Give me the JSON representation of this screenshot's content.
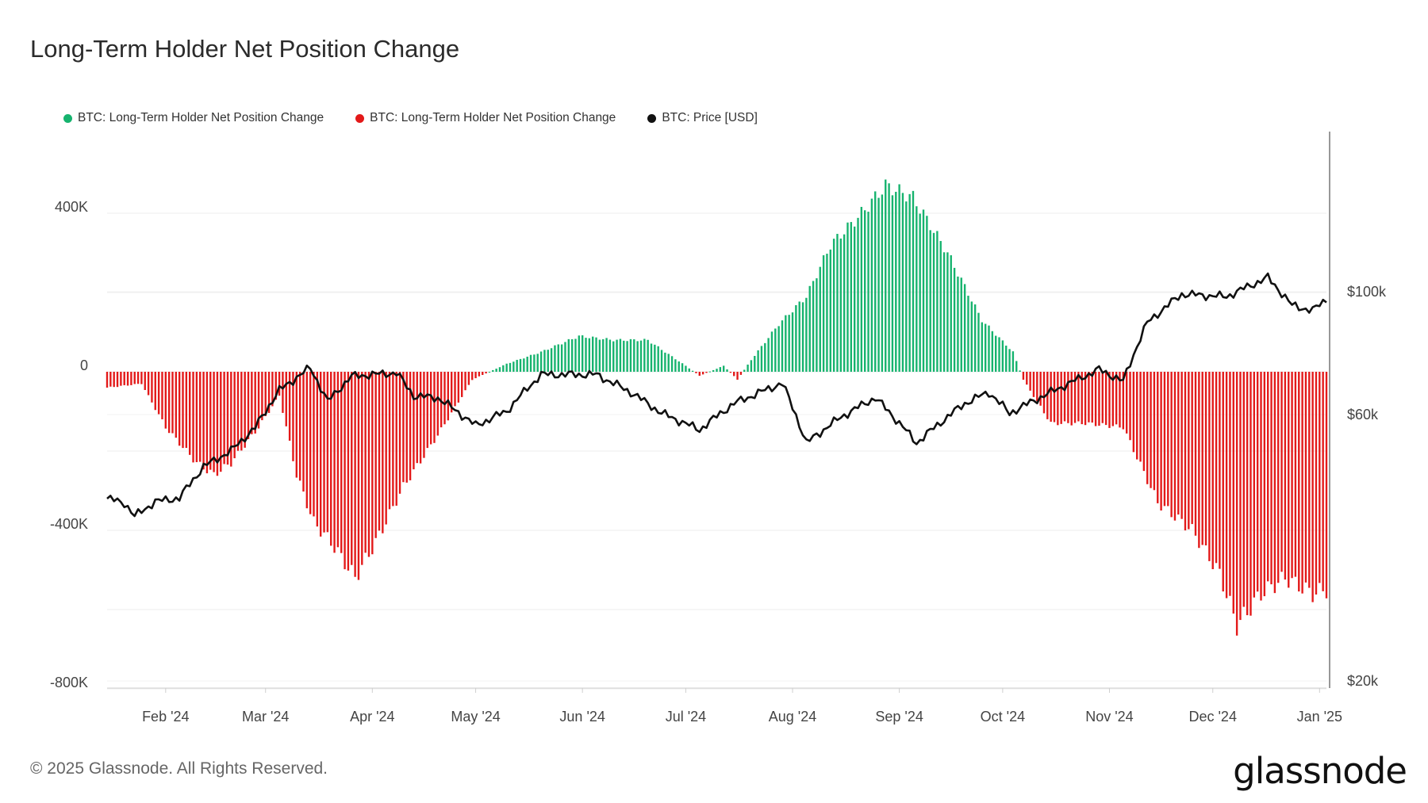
{
  "title": "Long-Term Holder Net Position Change",
  "footer": "© 2025 Glassnode. All Rights Reserved.",
  "logo": "glassnode",
  "legend": [
    {
      "label": "BTC: Long-Term Holder Net Position Change",
      "color": "#16b36e"
    },
    {
      "label": "BTC: Long-Term Holder Net Position Change",
      "color": "#e31919"
    },
    {
      "label": "BTC: Price [USD]",
      "color": "#111111"
    }
  ],
  "chart_data": {
    "type": "bar",
    "x_start": "2024-01-15",
    "x_end": "2025-01-03",
    "x_ticks": [
      "Feb '24",
      "Mar '24",
      "Apr '24",
      "May '24",
      "Jun '24",
      "Jul '24",
      "Aug '24",
      "Sep '24",
      "Oct '24",
      "Nov '24",
      "Dec '24",
      "Jan '25"
    ],
    "y_left": {
      "ticks": [
        "400K",
        "0",
        "-400K",
        "-800K"
      ],
      "range": [
        -800000,
        470000
      ]
    },
    "y_right": {
      "ticks": [
        "$100k",
        "$60k",
        "$20k"
      ],
      "scale": "log"
    },
    "net_position_anchors": [
      [
        "2024-01-15",
        -40000
      ],
      [
        "2024-01-25",
        -30000
      ],
      [
        "2024-02-01",
        -140000
      ],
      [
        "2024-02-10",
        -230000
      ],
      [
        "2024-02-15",
        -260000
      ],
      [
        "2024-02-20",
        -230000
      ],
      [
        "2024-02-28",
        -140000
      ],
      [
        "2024-03-05",
        -60000
      ],
      [
        "2024-03-10",
        -260000
      ],
      [
        "2024-03-15",
        -380000
      ],
      [
        "2024-03-20",
        -430000
      ],
      [
        "2024-03-27",
        -520000
      ],
      [
        "2024-04-02",
        -430000
      ],
      [
        "2024-04-10",
        -290000
      ],
      [
        "2024-04-20",
        -160000
      ],
      [
        "2024-04-30",
        -20000
      ],
      [
        "2024-05-05",
        0
      ],
      [
        "2024-05-10",
        20000
      ],
      [
        "2024-05-20",
        50000
      ],
      [
        "2024-05-31",
        90000
      ],
      [
        "2024-06-10",
        80000
      ],
      [
        "2024-06-20",
        80000
      ],
      [
        "2024-06-25",
        50000
      ],
      [
        "2024-07-01",
        15000
      ],
      [
        "2024-07-05",
        -10000
      ],
      [
        "2024-07-12",
        15000
      ],
      [
        "2024-07-16",
        -20000
      ],
      [
        "2024-07-20",
        30000
      ],
      [
        "2024-07-28",
        120000
      ],
      [
        "2024-08-05",
        190000
      ],
      [
        "2024-08-12",
        320000
      ],
      [
        "2024-08-20",
        390000
      ],
      [
        "2024-08-28",
        470000
      ],
      [
        "2024-09-05",
        440000
      ],
      [
        "2024-09-15",
        300000
      ],
      [
        "2024-09-25",
        130000
      ],
      [
        "2024-10-04",
        50000
      ],
      [
        "2024-10-07",
        -20000
      ],
      [
        "2024-10-15",
        -130000
      ],
      [
        "2024-10-25",
        -130000
      ],
      [
        "2024-11-05",
        -140000
      ],
      [
        "2024-11-15",
        -330000
      ],
      [
        "2024-11-25",
        -400000
      ],
      [
        "2024-12-03",
        -510000
      ],
      [
        "2024-12-08",
        -640000
      ],
      [
        "2024-12-15",
        -560000
      ],
      [
        "2024-12-22",
        -520000
      ],
      [
        "2024-12-30",
        -560000
      ],
      [
        "2025-01-03",
        -550000
      ]
    ],
    "price_anchors": [
      [
        "2024-01-15",
        42500
      ],
      [
        "2024-01-20",
        41800
      ],
      [
        "2024-01-23",
        39500
      ],
      [
        "2024-01-29",
        42000
      ],
      [
        "2024-02-05",
        42600
      ],
      [
        "2024-02-12",
        48500
      ],
      [
        "2024-02-20",
        51800
      ],
      [
        "2024-02-27",
        57000
      ],
      [
        "2024-03-05",
        66500
      ],
      [
        "2024-03-14",
        73000
      ],
      [
        "2024-03-19",
        63500
      ],
      [
        "2024-03-26",
        70500
      ],
      [
        "2024-04-01",
        71000
      ],
      [
        "2024-04-08",
        71500
      ],
      [
        "2024-04-13",
        65000
      ],
      [
        "2024-04-20",
        64500
      ],
      [
        "2024-05-01",
        57500
      ],
      [
        "2024-05-10",
        61000
      ],
      [
        "2024-05-20",
        71000
      ],
      [
        "2024-06-05",
        71000
      ],
      [
        "2024-06-15",
        66000
      ],
      [
        "2024-06-24",
        60500
      ],
      [
        "2024-07-05",
        56500
      ],
      [
        "2024-07-15",
        63000
      ],
      [
        "2024-07-29",
        68500
      ],
      [
        "2024-08-05",
        53500
      ],
      [
        "2024-08-15",
        59500
      ],
      [
        "2024-08-25",
        64500
      ],
      [
        "2024-09-06",
        53500
      ],
      [
        "2024-09-20",
        63000
      ],
      [
        "2024-09-27",
        66000
      ],
      [
        "2024-10-03",
        60500
      ],
      [
        "2024-10-15",
        66000
      ],
      [
        "2024-10-29",
        72500
      ],
      [
        "2024-11-05",
        69000
      ],
      [
        "2024-11-12",
        88000
      ],
      [
        "2024-11-22",
        99000
      ],
      [
        "2024-12-05",
        98000
      ],
      [
        "2024-12-17",
        106000
      ],
      [
        "2024-12-24",
        94500
      ],
      [
        "2024-12-30",
        92500
      ],
      [
        "2025-01-03",
        97000
      ]
    ]
  }
}
